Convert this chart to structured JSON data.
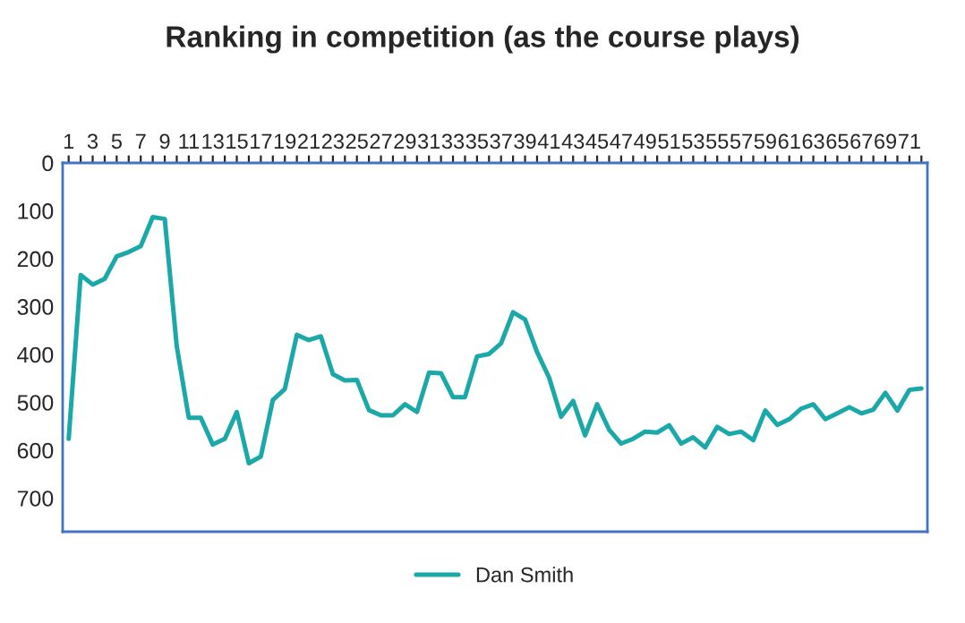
{
  "chart_data": {
    "type": "line",
    "title": "Ranking in competition (as the course plays)",
    "categories": [
      "1",
      null,
      "3",
      null,
      "5",
      null,
      "7",
      null,
      "9",
      null,
      "11",
      null,
      "13",
      null,
      "15",
      null,
      "17",
      null,
      "19",
      null,
      "21",
      null,
      "23",
      null,
      "25",
      null,
      "27",
      null,
      "29",
      null,
      "31",
      null,
      "33",
      null,
      "35",
      null,
      "37",
      null,
      "39",
      null,
      "41",
      null,
      "43",
      null,
      "45",
      null,
      "47",
      null,
      "49",
      null,
      "51",
      null,
      "53",
      null,
      "55",
      null,
      "57",
      null,
      "59",
      null,
      "61",
      null,
      "63",
      null,
      "65",
      null,
      "67",
      null,
      "69",
      null,
      "71",
      null
    ],
    "series": [
      {
        "name": "Dan Smith",
        "color": "#1aa8a8",
        "values": [
          576,
          234,
          254,
          242,
          195,
          186,
          174,
          113,
          117,
          383,
          532,
          532,
          588,
          576,
          520,
          627,
          613,
          495,
          472,
          359,
          370,
          362,
          441,
          454,
          453,
          516,
          527,
          527,
          504,
          520,
          438,
          439,
          489,
          489,
          404,
          399,
          377,
          312,
          327,
          395,
          448,
          530,
          497,
          569,
          504,
          557,
          586,
          576,
          561,
          563,
          548,
          586,
          573,
          594,
          551,
          566,
          561,
          579,
          517,
          547,
          535,
          513,
          504,
          535,
          523,
          510,
          523,
          515,
          480,
          517,
          474,
          471
        ]
      }
    ],
    "ylim": [
      770,
      0
    ],
    "yticks": [
      0,
      100,
      200,
      300,
      400,
      500,
      600,
      700
    ],
    "grid": false,
    "legend": "bottom",
    "marker": "none",
    "line_style": "solid"
  }
}
